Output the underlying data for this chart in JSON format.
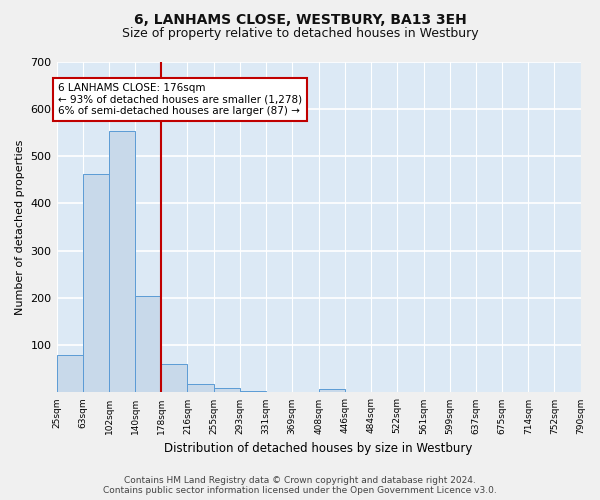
{
  "title": "6, LANHAMS CLOSE, WESTBURY, BA13 3EH",
  "subtitle": "Size of property relative to detached houses in Westbury",
  "xlabel": "Distribution of detached houses by size in Westbury",
  "ylabel": "Number of detached properties",
  "bar_edges": [
    25,
    63,
    102,
    140,
    178,
    216,
    255,
    293,
    331,
    369,
    408,
    446,
    484,
    522,
    561,
    599,
    637,
    675,
    714,
    752,
    790
  ],
  "bar_heights": [
    80,
    462,
    554,
    205,
    60,
    17,
    9,
    2,
    0,
    0,
    8,
    0,
    0,
    0,
    0,
    0,
    0,
    0,
    0,
    0
  ],
  "bar_color": "#c8d9ea",
  "bar_edge_color": "#5b9bd5",
  "property_line_x": 178,
  "property_line_color": "#c00000",
  "annotation_text": "6 LANHAMS CLOSE: 176sqm\n← 93% of detached houses are smaller (1,278)\n6% of semi-detached houses are larger (87) →",
  "annotation_box_color": "#ffffff",
  "annotation_box_edge_color": "#c00000",
  "ylim": [
    0,
    700
  ],
  "yticks": [
    0,
    100,
    200,
    300,
    400,
    500,
    600,
    700
  ],
  "tick_labels": [
    "25sqm",
    "63sqm",
    "102sqm",
    "140sqm",
    "178sqm",
    "216sqm",
    "255sqm",
    "293sqm",
    "331sqm",
    "369sqm",
    "408sqm",
    "446sqm",
    "484sqm",
    "522sqm",
    "561sqm",
    "599sqm",
    "637sqm",
    "675sqm",
    "714sqm",
    "752sqm",
    "790sqm"
  ],
  "background_color": "#dce9f5",
  "plot_bg_color": "#dce9f5",
  "fig_bg_color": "#f0f0f0",
  "grid_color": "#ffffff",
  "footer_line1": "Contains HM Land Registry data © Crown copyright and database right 2024.",
  "footer_line2": "Contains public sector information licensed under the Open Government Licence v3.0.",
  "title_fontsize": 10,
  "subtitle_fontsize": 9,
  "annotation_fontsize": 7.5,
  "footer_fontsize": 6.5,
  "ylabel_fontsize": 8,
  "xlabel_fontsize": 8.5,
  "ytick_fontsize": 8,
  "xtick_fontsize": 6.5
}
